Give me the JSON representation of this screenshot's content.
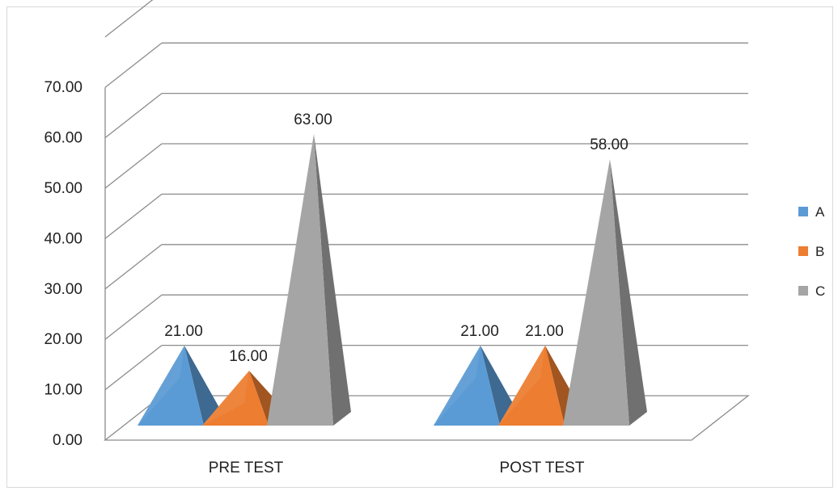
{
  "chart_data": {
    "type": "bar",
    "style": "3d-pyramid",
    "categories": [
      "PRE TEST",
      "POST TEST"
    ],
    "series": [
      {
        "name": "A",
        "values": [
          21.0,
          21.0
        ],
        "color": "#5b9bd5"
      },
      {
        "name": "B",
        "values": [
          16.0,
          21.0
        ],
        "color": "#ed7d31"
      },
      {
        "name": "C",
        "values": [
          63.0,
          58.0
        ],
        "color": "#a5a5a5"
      }
    ],
    "data_labels": [
      [
        "21.00",
        "21.00"
      ],
      [
        "16.00",
        "21.00"
      ],
      [
        "63.00",
        "58.00"
      ]
    ],
    "y_ticks": [
      "0.00",
      "10.00",
      "20.00",
      "30.00",
      "40.00",
      "50.00",
      "60.00",
      "70.00"
    ],
    "ylim": [
      0,
      70
    ],
    "grid": true,
    "legend_position": "right"
  }
}
